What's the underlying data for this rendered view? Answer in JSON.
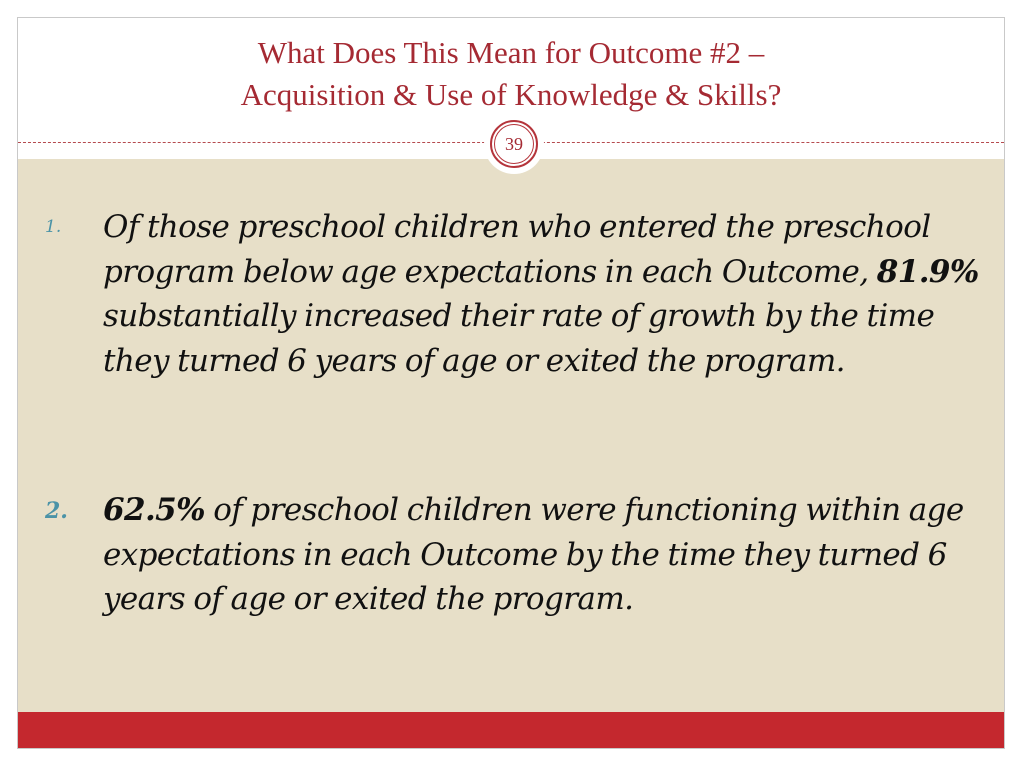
{
  "slide": {
    "title_line1": "What Does This Mean for Outcome #2 –",
    "title_line2": "Acquisition & Use of Knowledge & Skills?",
    "page_number": "39"
  },
  "list": {
    "items": [
      {
        "number": "1.",
        "text_before": "Of those preschool children who entered the preschool program below age expectations in each Outcome, ",
        "highlight": "81.9%",
        "text_after": " substantially increased their rate of growth by the time they turned 6 years of age or exited the program."
      },
      {
        "number": "2.",
        "text_before": "",
        "highlight": "62.5%",
        "text_after": " of preschool children were functioning within age expectations in each Outcome by the time they turned 6 years of age or exited the program."
      }
    ]
  },
  "colors": {
    "title": "#a52a33",
    "body_background": "#e7dfc8",
    "number": "#4b93a7",
    "footer_bar": "#c4282e"
  }
}
